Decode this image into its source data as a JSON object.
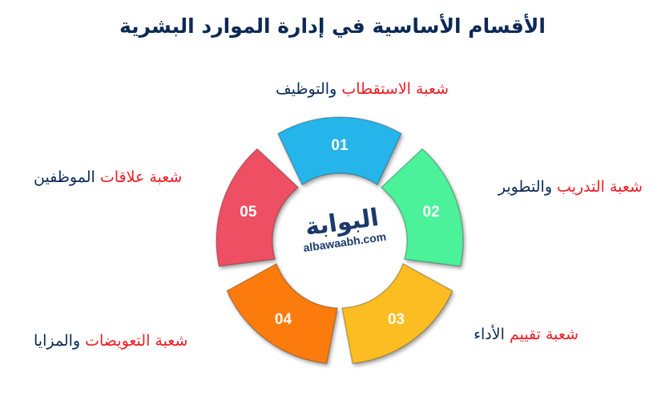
{
  "title": "الأقسام الأساسية في إدارة الموارد البشرية",
  "segments": [
    {
      "number": "01",
      "color": "#27b5ea",
      "label_red": "شعبة الاستقطاب",
      "label_blue": "والتوظيف"
    },
    {
      "number": "02",
      "color": "#4cf29a",
      "label_red": "شعبة التدريب",
      "label_blue": "والتطوير"
    },
    {
      "number": "03",
      "color": "#fbbd22",
      "label_red": "شعبة تقييم",
      "label_blue": "الأداء"
    },
    {
      "number": "04",
      "color": "#fb7c0c",
      "label_red": "شعبة التعويضات",
      "label_blue": "والمزايا"
    },
    {
      "number": "05",
      "color": "#ee5064",
      "label_red": "شعبة علاقات",
      "label_blue": "الموظفين"
    }
  ],
  "logo": {
    "arabic": "البوابة",
    "domain": "albawaabh.com"
  }
}
